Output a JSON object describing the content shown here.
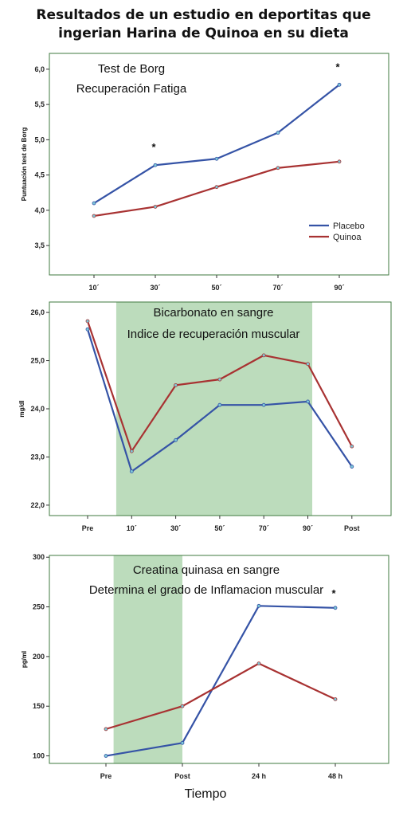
{
  "title_lines": [
    "Resultados de un estudio en deportitas que",
    "ingerian Harina de Quinoa en su dieta"
  ],
  "colors": {
    "placebo": "#3553a6",
    "quinoa": "#a83232",
    "shade": "#bcdcbc",
    "frame": "#3f7a3f"
  },
  "x_axis_title": "Tiempo",
  "chart_data": [
    {
      "type": "line",
      "title": "Test de Borg",
      "subtitle": "Recuperación Fatiga",
      "ylabel": "Puntuación test de Borg",
      "categories": [
        "10´",
        "30´",
        "50´",
        "70´",
        "90´"
      ],
      "ylim": [
        3.4,
        6.1
      ],
      "yticks": [
        "3,5",
        "4,0",
        "4,5",
        "5,0",
        "5,5",
        "6,0"
      ],
      "ytick_values": [
        3.5,
        4.0,
        4.5,
        5.0,
        5.5,
        6.0
      ],
      "legend": "bottom-right",
      "series": [
        {
          "name": "Placebo",
          "values": [
            4.1,
            4.64,
            4.73,
            5.1,
            5.78
          ]
        },
        {
          "name": "Quinoa",
          "values": [
            3.92,
            4.05,
            4.33,
            4.6,
            4.69
          ]
        }
      ],
      "annotations": [
        {
          "category": "30´",
          "text": "*"
        },
        {
          "category": "90´",
          "text": "*"
        }
      ],
      "shaded": null
    },
    {
      "type": "line",
      "title": "Bicarbonato en sangre",
      "subtitle": "Indice de recuperación muscular",
      "ylabel": "mg/dl",
      "categories": [
        "Pre",
        "10´",
        "30´",
        "50´",
        "70´",
        "90´",
        "Post"
      ],
      "ylim": [
        21.8,
        26.2
      ],
      "yticks": [
        "22,0",
        "23,0",
        "24,0",
        "25,0",
        "26,0"
      ],
      "ytick_values": [
        22.0,
        23.0,
        24.0,
        25.0,
        26.0
      ],
      "legend": "none",
      "series": [
        {
          "name": "Placebo",
          "values": [
            25.65,
            22.7,
            23.35,
            24.08,
            24.08,
            24.15,
            22.8
          ]
        },
        {
          "name": "Quinoa",
          "values": [
            25.82,
            23.12,
            24.49,
            24.61,
            25.11,
            24.93,
            23.22
          ]
        }
      ],
      "annotations": [],
      "shaded": {
        "from": 0.65,
        "to": 5.1
      }
    },
    {
      "type": "line",
      "title": "Creatina quinasa en sangre",
      "subtitle": "Determina el grado de Inflamacion muscular",
      "ylabel": "pg/ml",
      "categories": [
        "Pre",
        "Post",
        "24 h",
        "48 h"
      ],
      "ylim": [
        90,
        305
      ],
      "yticks": [
        "100",
        "150",
        "200",
        "250",
        "300"
      ],
      "ytick_values": [
        100,
        150,
        200,
        250,
        300
      ],
      "legend": "none",
      "series": [
        {
          "name": "Placebo",
          "values": [
            100,
            113,
            251,
            249
          ]
        },
        {
          "name": "Quinoa",
          "values": [
            127,
            150,
            193,
            157
          ]
        }
      ],
      "annotations": [
        {
          "category": "48 h",
          "text": "*"
        }
      ],
      "shaded": {
        "from": 0.1,
        "to": 1.0
      }
    }
  ]
}
